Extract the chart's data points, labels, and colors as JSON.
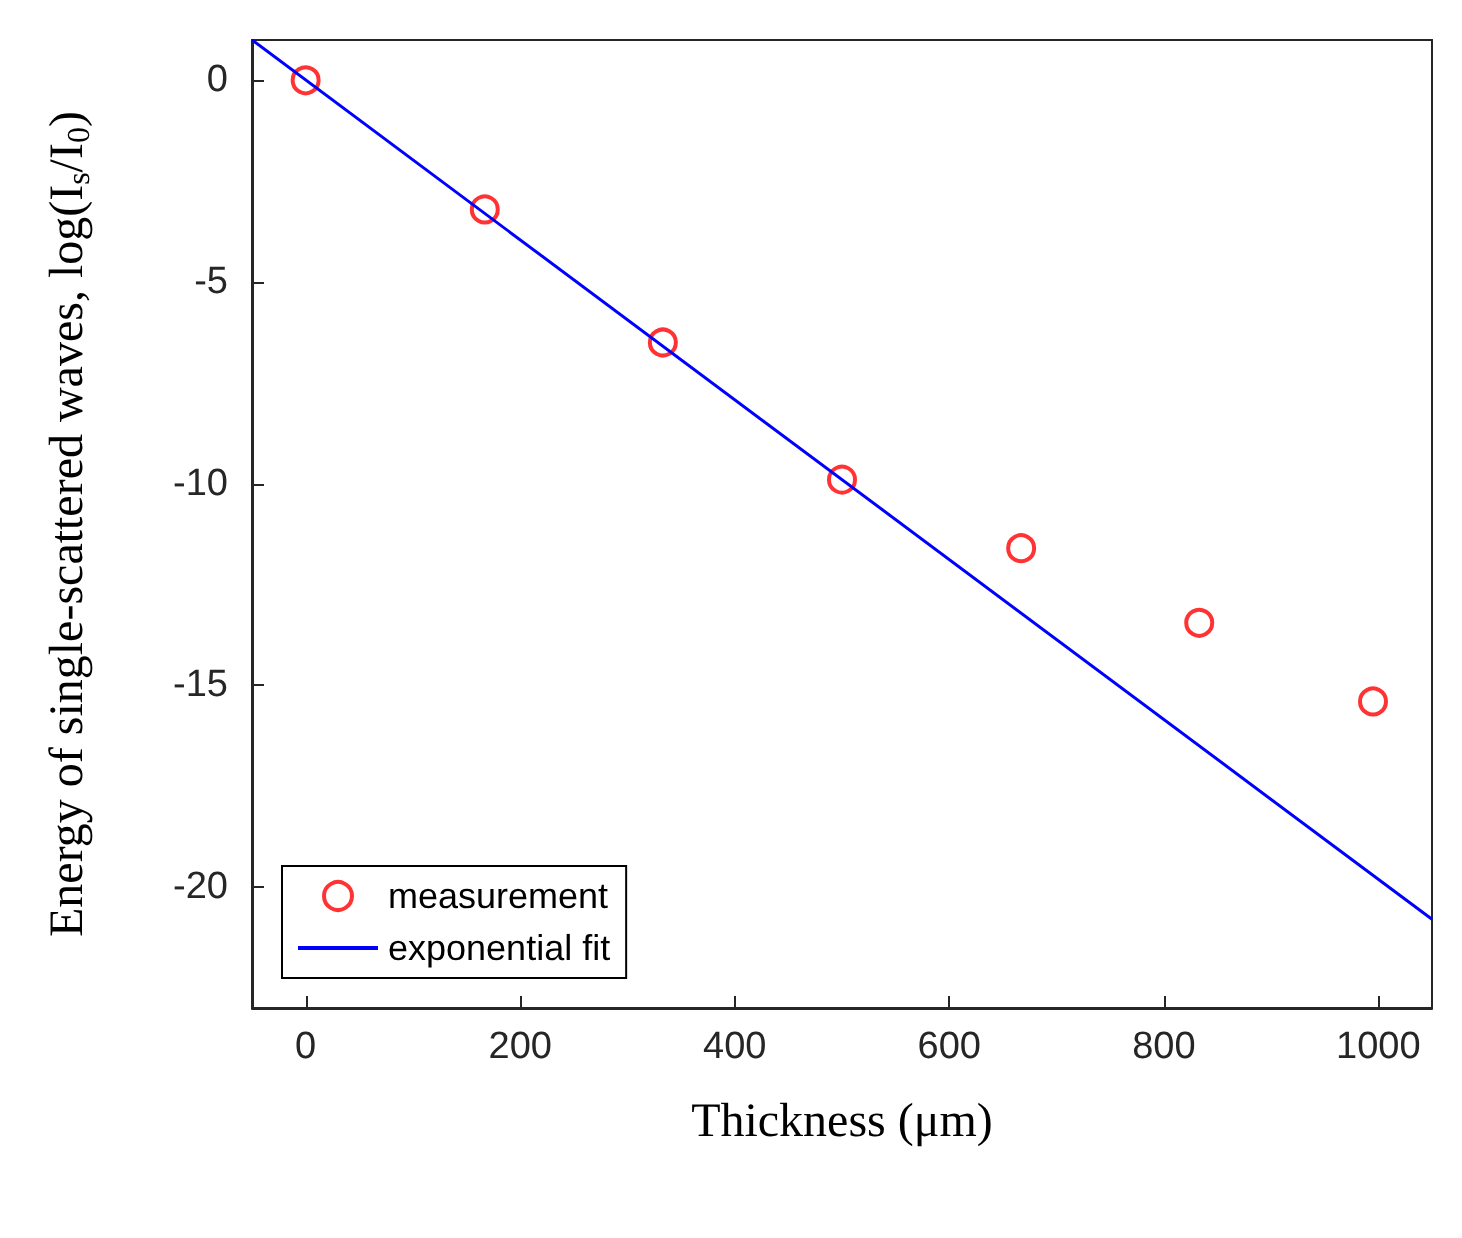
{
  "chart_data": {
    "type": "scatter",
    "xlabel": "Thickness (μm)",
    "ylabel": "Energy of single-scattered waves, log(I$_{s}$/I$_{0}$)",
    "xlim": [
      -50,
      1050
    ],
    "ylim": [
      -23,
      1
    ],
    "xticks": [
      0,
      200,
      400,
      600,
      800,
      1000
    ],
    "yticks": [
      -20,
      -15,
      -10,
      -5,
      0
    ],
    "grid": false,
    "legend": "bottom left",
    "series": [
      {
        "name": "measurement",
        "marker": "circle",
        "color": "#ff0000",
        "x": [
          0,
          167,
          333,
          500,
          667,
          833,
          995
        ],
        "values": [
          0,
          -3.2,
          -6.5,
          -9.9,
          -11.6,
          -13.45,
          -15.4
        ]
      },
      {
        "name": "exponential fit",
        "type": "line",
        "line_style": "solid",
        "color": "#0000ff",
        "x": [
          -50,
          1050
        ],
        "values": [
          1.0,
          -20.8
        ]
      }
    ]
  }
}
